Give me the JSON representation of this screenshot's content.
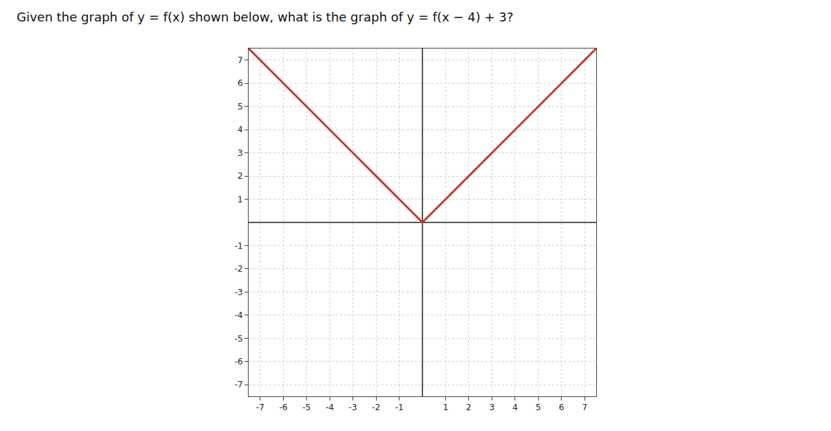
{
  "chart_data": {
    "type": "line",
    "title": "Given the graph of y = f(x) shown below, what is the graph of y = f(x − 4) + 3?",
    "x": [
      -7.5,
      0,
      7.5
    ],
    "values": [
      7.5,
      0,
      7.5
    ],
    "color": "#c0392b",
    "xlim": [
      -7.5,
      7.5
    ],
    "ylim": [
      -7.5,
      7.5
    ],
    "xticks": [
      -7,
      -6,
      -5,
      -4,
      -3,
      -2,
      -1,
      1,
      2,
      3,
      4,
      5,
      6,
      7
    ],
    "yticks": [
      -7,
      -6,
      -5,
      -4,
      -3,
      -2,
      -1,
      1,
      2,
      3,
      4,
      5,
      6,
      7
    ],
    "grid": true
  }
}
